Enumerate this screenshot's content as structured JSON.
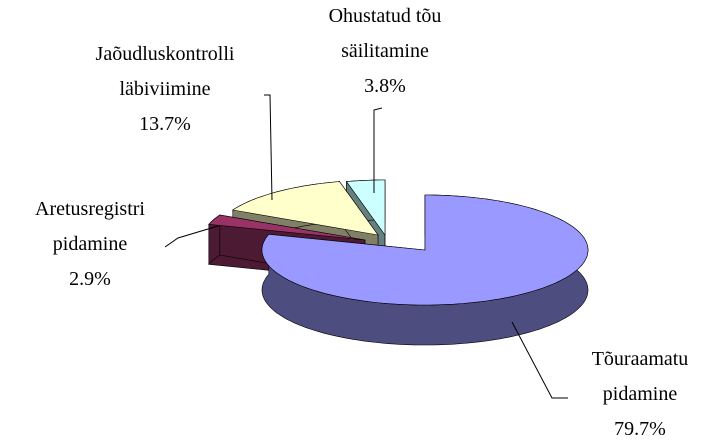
{
  "chart_data": {
    "type": "pie3d",
    "categories": [
      "Tõuraamatu pidamine",
      "Aretusregistri pidamine",
      "Jaõudluskontrolli läbiviimine",
      "Ohustatud tõu säilitamine"
    ],
    "values": [
      79.7,
      2.9,
      13.7,
      3.8
    ],
    "value_labels": [
      "79.7%",
      "2.9%",
      "13.7%",
      "3.8%"
    ],
    "colors": [
      "#9999ff",
      "#993366",
      "#ffffcc",
      "#ccffff"
    ]
  }
}
